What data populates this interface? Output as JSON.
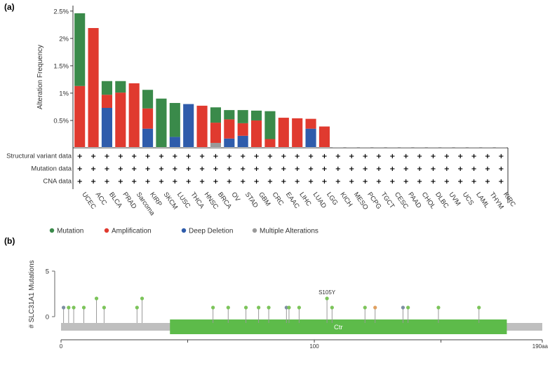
{
  "panel_a_label": "(a)",
  "panel_b_label": "(b)",
  "colors": {
    "mutation": "#3a8a4a",
    "amplification": "#e03a2f",
    "deep_deletion": "#2f5cab",
    "multiple": "#9a9a9a",
    "lollipop": "#7cc45a",
    "track": "#bfbfbf",
    "domain": "#5dbb4a"
  },
  "chart_data": [
    {
      "type": "bar",
      "stacked": true,
      "ylabel": "Alteration Frequency",
      "ylim": [
        0,
        2.6
      ],
      "yticks": [
        0.5,
        1,
        1.5,
        2,
        2.5
      ],
      "ytick_labels": [
        "0.5%",
        "1%",
        "1.5%",
        "2%",
        "2.5%"
      ],
      "categories": [
        "UCEC",
        "ACC",
        "BLCA",
        "PRAD",
        "Sarcoma",
        "KIRP",
        "SKCM",
        "LUSC",
        "THCA",
        "HNSC",
        "BRCA",
        "OV",
        "STAD",
        "GBM",
        "CRC",
        "EAAC",
        "LIHC",
        "LUAD",
        "LGG",
        "KICH",
        "MESO",
        "PCPG",
        "TGCT",
        "CESC",
        "PAAD",
        "CHOL",
        "DLBC",
        "UVM",
        "UCS",
        "LAML",
        "THYM",
        "KIRC"
      ],
      "series": [
        {
          "name": "Multiple Alterations",
          "key": "multiple",
          "values": [
            0,
            0,
            0,
            0,
            0,
            0,
            0,
            0,
            0,
            0,
            0.09,
            0,
            0,
            0,
            0,
            0,
            0,
            0,
            0,
            0,
            0,
            0,
            0,
            0,
            0,
            0,
            0,
            0,
            0,
            0,
            0,
            0
          ]
        },
        {
          "name": "Deep Deletion",
          "key": "deep_deletion",
          "values": [
            0,
            0,
            0.73,
            0,
            0,
            0.35,
            0,
            0.2,
            0.8,
            0,
            0,
            0.17,
            0.22,
            0,
            0,
            0,
            0,
            0.35,
            0,
            0,
            0,
            0,
            0,
            0,
            0,
            0,
            0,
            0,
            0,
            0,
            0,
            0
          ]
        },
        {
          "name": "Amplification",
          "key": "amplification",
          "values": [
            1.13,
            2.19,
            0.24,
            1.01,
            1.18,
            0.37,
            0,
            0,
            0,
            0.77,
            0.37,
            0.35,
            0.23,
            0.5,
            0.16,
            0.55,
            0.54,
            0.18,
            0.39,
            0,
            0,
            0,
            0,
            0,
            0,
            0,
            0,
            0,
            0,
            0,
            0,
            0
          ]
        },
        {
          "name": "Mutation",
          "key": "mutation",
          "values": [
            1.33,
            0,
            0.25,
            0.21,
            0,
            0.34,
            0.9,
            0.62,
            0,
            0,
            0.28,
            0.17,
            0.24,
            0.18,
            0.51,
            0,
            0,
            0,
            0,
            0,
            0,
            0,
            0,
            0,
            0,
            0,
            0,
            0,
            0,
            0,
            0,
            0
          ]
        }
      ],
      "data_rows": [
        "Structural variant data",
        "Mutation data",
        "CNA data"
      ],
      "row_marker": "+",
      "legend": [
        "Mutation",
        "Amplification",
        "Deep Deletion",
        "Multiple Alterations"
      ]
    },
    {
      "type": "scatter",
      "subtype": "lollipop",
      "ylabel": "# SLC31A1 Mutations",
      "ylim": [
        0,
        5
      ],
      "yticks": [
        0,
        5
      ],
      "xlim": [
        0,
        190
      ],
      "xticks": [
        0,
        100
      ],
      "xtick_labels": [
        "0",
        "100"
      ],
      "xmax_label": "190aa",
      "annotation": "S105Y",
      "domain": {
        "label": "Ctr",
        "start": 43,
        "end": 176
      },
      "mutations": [
        {
          "x": 1,
          "y": 1,
          "color": "#7e8fa3"
        },
        {
          "x": 3,
          "y": 1,
          "color": "#7cc45a"
        },
        {
          "x": 5,
          "y": 1,
          "color": "#7cc45a"
        },
        {
          "x": 9,
          "y": 1,
          "color": "#7cc45a"
        },
        {
          "x": 14,
          "y": 2,
          "color": "#7cc45a"
        },
        {
          "x": 17,
          "y": 1,
          "color": "#7cc45a"
        },
        {
          "x": 30,
          "y": 1,
          "color": "#7cc45a"
        },
        {
          "x": 32,
          "y": 2,
          "color": "#7cc45a"
        },
        {
          "x": 60,
          "y": 1,
          "color": "#7cc45a"
        },
        {
          "x": 66,
          "y": 1,
          "color": "#7cc45a"
        },
        {
          "x": 73,
          "y": 1,
          "color": "#7cc45a"
        },
        {
          "x": 78,
          "y": 1,
          "color": "#7cc45a"
        },
        {
          "x": 82,
          "y": 1,
          "color": "#7cc45a"
        },
        {
          "x": 89,
          "y": 1,
          "color": "#7e8fa3"
        },
        {
          "x": 90,
          "y": 1,
          "color": "#7cc45a"
        },
        {
          "x": 94,
          "y": 1,
          "color": "#7cc45a"
        },
        {
          "x": 105,
          "y": 2,
          "color": "#7cc45a",
          "label": "S105Y"
        },
        {
          "x": 107,
          "y": 1,
          "color": "#7cc45a"
        },
        {
          "x": 120,
          "y": 1,
          "color": "#7cc45a"
        },
        {
          "x": 124,
          "y": 1,
          "color": "#e0a060"
        },
        {
          "x": 135,
          "y": 1,
          "color": "#7e8fa3"
        },
        {
          "x": 137,
          "y": 1,
          "color": "#7cc45a"
        },
        {
          "x": 149,
          "y": 1,
          "color": "#7cc45a"
        },
        {
          "x": 165,
          "y": 1,
          "color": "#7cc45a"
        }
      ]
    }
  ]
}
